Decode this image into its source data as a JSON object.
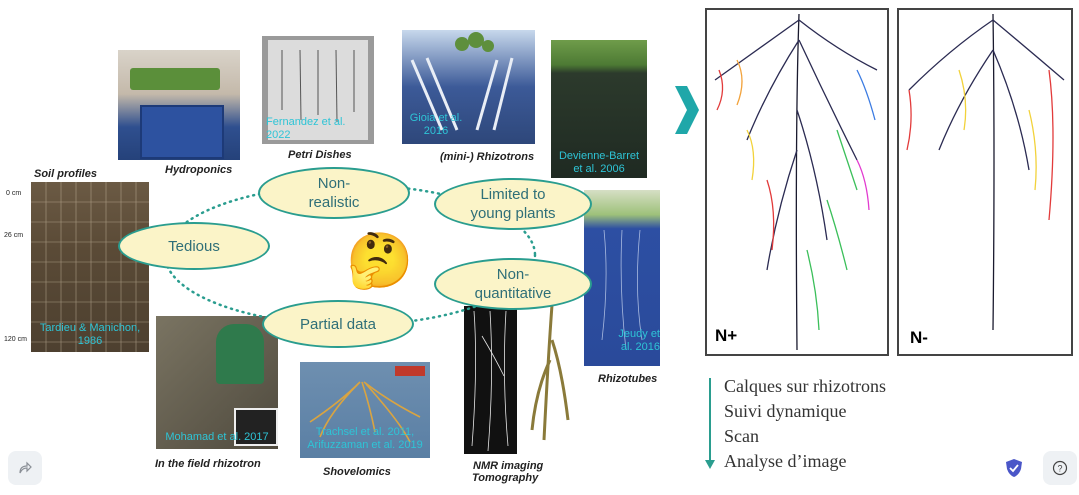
{
  "captions": {
    "soil_profiles": "Soil profiles",
    "hydroponics": "Hydroponics",
    "petri_dishes": "Petri Dishes",
    "mini_rhizotrons": "(mini-) Rhizotrons",
    "rhizotubes": "Rhizotubes",
    "field_rhizotron": "In the field rhizotron",
    "shovelomics": "Shovelomics",
    "nmr_line1": "NMR imaging",
    "nmr_line2": "Tomography"
  },
  "citations": {
    "tardieu": "Tardieu & Manichon, 1986",
    "fernandez_l1": "Fernandez et al.",
    "fernandez_l2": "2022",
    "gioia_l1": "Gioia et al.",
    "gioia_l2": "2016",
    "devienne_l1": "Devienne-Barret",
    "devienne_l2": "et al. 2006",
    "jeudy_l1": "Jeudy et",
    "jeudy_l2": "al. 2016",
    "mohamad": "Mohamad et al. 2017",
    "trachsel_l1": "Trachsel et al. 2011,",
    "trachsel_l2": "Arifuzzaman et al. 2019"
  },
  "depth_ticks": [
    "0 cm",
    "26 cm",
    "120 cm"
  ],
  "ovals": {
    "non_realistic_l1": "Non-",
    "non_realistic_l2": "realistic",
    "limited_l1": "Limited to",
    "limited_l2": "young plants",
    "tedious": "Tedious",
    "non_quant_l1": "Non-",
    "non_quant_l2": "quantitative",
    "partial": "Partial data"
  },
  "emoji": "🤔",
  "scans": {
    "left_label": "N+",
    "right_label": "N-"
  },
  "bullets": [
    "Calques sur rhizotrons",
    "Suivi dynamique",
    "Scan",
    "Analyse d’image"
  ],
  "colors": {
    "accent_teal": "#2a9d8f",
    "oval_fill": "#fbf4c8",
    "citation_cyan": "#2ec4d6"
  },
  "icons": {
    "share": "share-icon",
    "shield": "shield-check-icon",
    "help": "help-icon"
  }
}
